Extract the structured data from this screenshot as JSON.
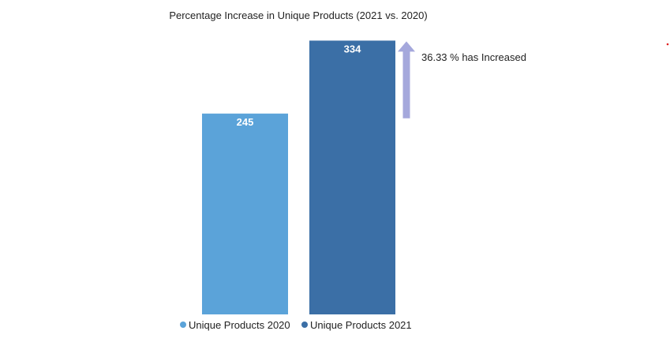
{
  "chart_data": {
    "type": "bar",
    "title": "Percentage Increase in Unique Products (2021 vs. 2020)",
    "series": [
      {
        "name": "Unique Products 2020",
        "value": 245,
        "label": "245",
        "color": "#5ba3d9"
      },
      {
        "name": "Unique Products 2021",
        "value": 334,
        "label": "334",
        "color": "#3b6fa6"
      }
    ],
    "ylim": [
      0,
      345
    ],
    "grid": false,
    "legend": "bottom",
    "annotation": {
      "text": "36.33 % has Increased",
      "arrow_color": "#a5a8dc"
    }
  }
}
